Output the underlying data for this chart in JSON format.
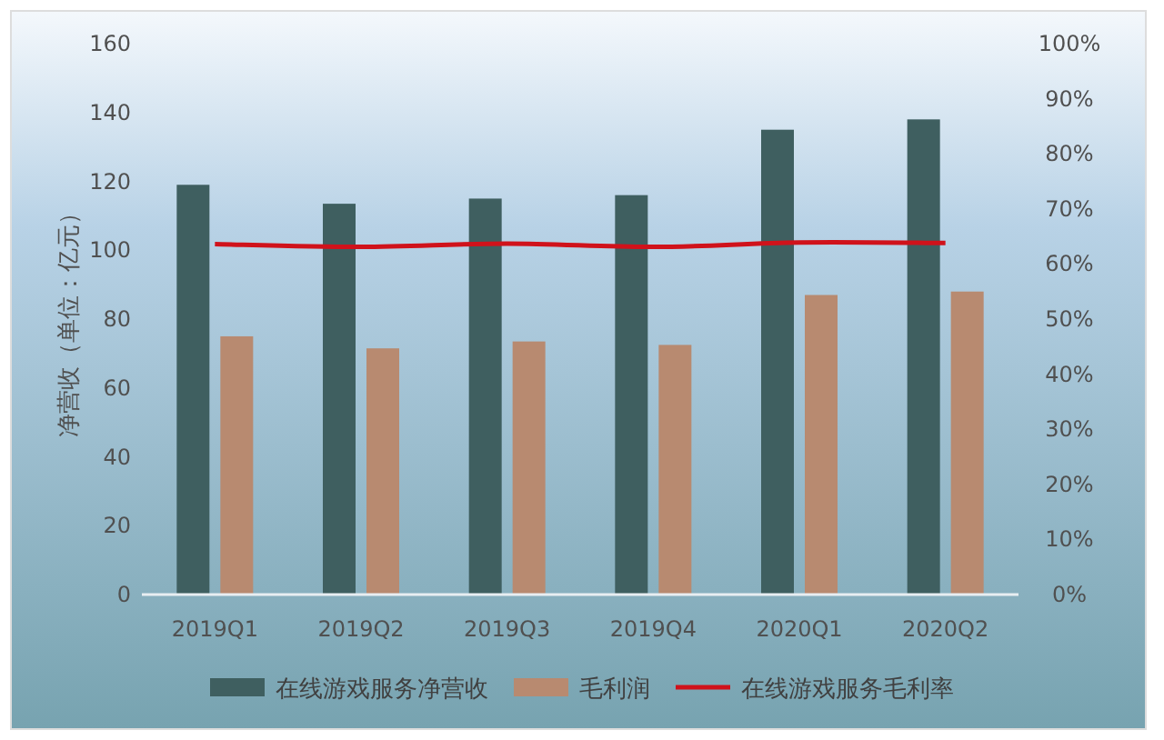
{
  "chart_data": {
    "type": "bar",
    "ylabel": "净营收（单位：亿元）",
    "categories": [
      "2019Q1",
      "2019Q2",
      "2019Q3",
      "2019Q4",
      "2020Q1",
      "2020Q2"
    ],
    "series": [
      {
        "name": "在线游戏服务净营收",
        "color": "#3f5f60",
        "values": [
          119,
          113.5,
          115,
          116,
          135,
          138
        ]
      },
      {
        "name": "毛利润",
        "color": "#b88a70",
        "values": [
          75,
          71.5,
          73.5,
          72.5,
          87,
          88
        ]
      },
      {
        "name": "在线游戏服务毛利率",
        "type": "line",
        "axis": "y2",
        "color": "#d0121b",
        "values": [
          0.636,
          0.631,
          0.637,
          0.631,
          0.639,
          0.638
        ]
      }
    ],
    "ylim": [
      0,
      160
    ],
    "yticks": [
      0,
      20,
      40,
      60,
      80,
      100,
      120,
      140,
      160
    ],
    "y2lim": [
      0,
      1
    ],
    "y2ticks": [
      {
        "value": 0,
        "label": "0%"
      },
      {
        "value": 0.1,
        "label": "10%"
      },
      {
        "value": 0.2,
        "label": "20%"
      },
      {
        "value": 0.3,
        "label": "30%"
      },
      {
        "value": 0.4,
        "label": "40%"
      },
      {
        "value": 0.5,
        "label": "50%"
      },
      {
        "value": 0.6,
        "label": "60%"
      },
      {
        "value": 0.7,
        "label": "70%"
      },
      {
        "value": 0.8,
        "label": "80%"
      },
      {
        "value": 0.9,
        "label": "90%"
      },
      {
        "value": 1,
        "label": "100%"
      }
    ],
    "grid": false,
    "legend": "bottom",
    "marker": "none",
    "line_style": "solid"
  }
}
